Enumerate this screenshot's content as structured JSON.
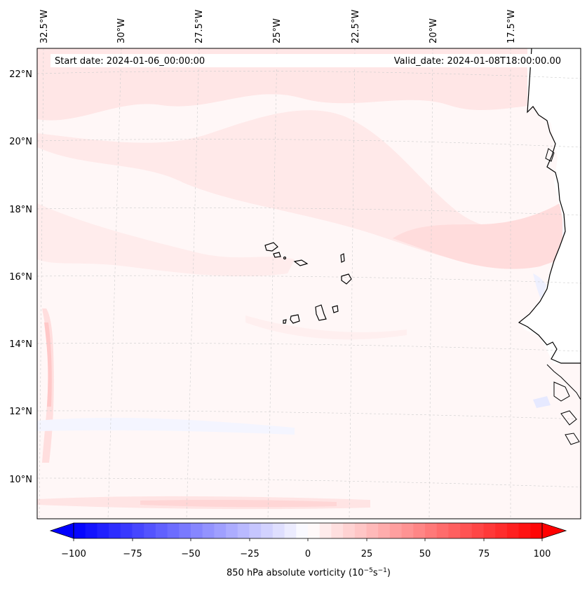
{
  "header": {
    "start_date": "Start date: 2024-01-06_00:00:00",
    "valid_date": "Valid_date: 2024-01-08T18:00:00.00"
  },
  "longitude_labels": [
    "32.5°W",
    "30°W",
    "27.5°W",
    "25°W",
    "22.5°W",
    "20°W",
    "17.5°W"
  ],
  "latitude_labels": [
    "22°N",
    "20°N",
    "18°N",
    "16°N",
    "14°N",
    "12°N",
    "10°N"
  ],
  "colorbar": {
    "ticks": [
      "−100",
      "−75",
      "−50",
      "−25",
      "0",
      "25",
      "50",
      "75",
      "100"
    ],
    "label_main": "850 hPa absolute vorticity (10",
    "label_exp1": "−5",
    "label_mid": "s",
    "label_exp2": "−1",
    "label_end": ")",
    "min_color": "#0000ff",
    "mid_color": "#ffffff",
    "max_color": "#ff0000"
  },
  "map": {
    "land_color": "#ffffff",
    "coast_color": "#000000",
    "grid_color": "#cccccc"
  }
}
